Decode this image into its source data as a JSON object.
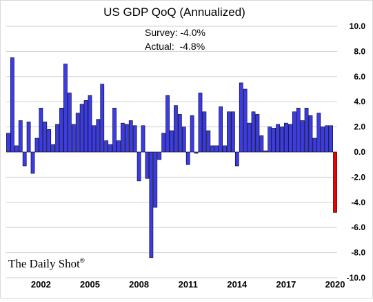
{
  "chart_data": {
    "type": "bar",
    "title": "US GDP QoQ (Annualized)",
    "annotations": [
      "Survey: -4.0%",
      "Actual:  -4.8%"
    ],
    "watermark": "The Daily Shot",
    "watermark_mark": "®",
    "xlabel": "",
    "ylabel": "",
    "ylim": [
      -10,
      10
    ],
    "yticks": [
      "10.0",
      "8.0",
      "6.0",
      "4.0",
      "2.0",
      "0.0",
      "-2.0",
      "-4.0",
      "-6.0",
      "-8.0",
      "-10.0"
    ],
    "xticks": [
      "2002",
      "2005",
      "2008",
      "2011",
      "2014",
      "2017",
      "2020"
    ],
    "grid": true,
    "colors": {
      "normal": "#3b3bea",
      "highlight": "#ee0000"
    },
    "x_start": "2000-Q1",
    "x_end": "2020-Q1",
    "series": [
      {
        "values": [
          1.5,
          7.5,
          0.5,
          2.5,
          -1.1,
          2.4,
          -1.7,
          1.1,
          3.5,
          2.4,
          1.8,
          0.6,
          2.2,
          3.5,
          7.0,
          4.7,
          2.2,
          3.1,
          3.8,
          4.1,
          4.5,
          2.1,
          2.6,
          5.4,
          0.9,
          0.6,
          3.5,
          0.9,
          2.3,
          2.2,
          2.5,
          2.1,
          -2.3,
          2.1,
          -2.1,
          -8.4,
          -4.4,
          -0.6,
          1.5,
          4.5,
          1.7,
          3.7,
          3.0,
          2.0,
          -1.0,
          2.9,
          -0.1,
          4.7,
          3.2,
          1.7,
          0.5,
          0.5,
          3.6,
          0.5,
          3.2,
          3.2,
          -1.1,
          5.5,
          5.0,
          2.3,
          3.2,
          3.0,
          1.3,
          0.1,
          2.0,
          1.9,
          2.2,
          2.0,
          2.3,
          2.2,
          3.2,
          3.5,
          2.5,
          3.5,
          2.9,
          1.1,
          3.1,
          2.0,
          2.1,
          2.1,
          -4.8
        ],
        "highlight_last": true
      }
    ]
  }
}
